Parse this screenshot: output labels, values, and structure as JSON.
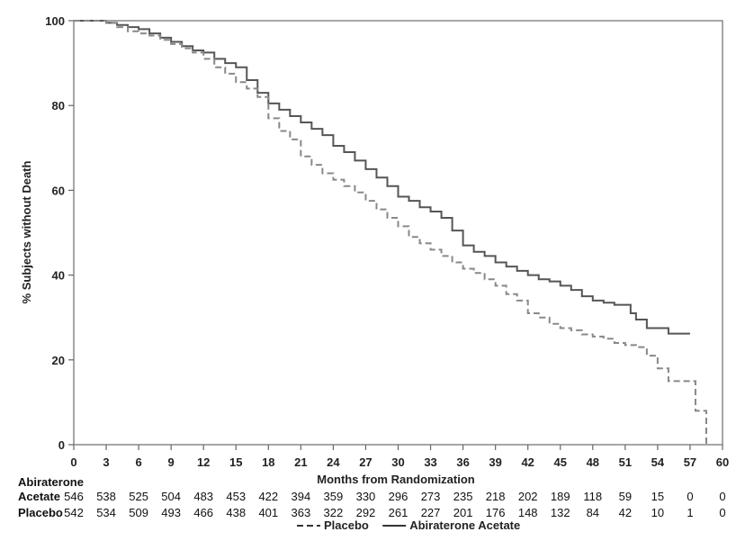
{
  "chart_data": {
    "type": "line",
    "xlabel": "Months from Randomization",
    "ylabel": "% Subjects without Death",
    "xlim": [
      0,
      60
    ],
    "ylim": [
      0,
      100
    ],
    "x_ticks": [
      0,
      3,
      6,
      9,
      12,
      15,
      18,
      21,
      24,
      27,
      30,
      33,
      36,
      39,
      42,
      45,
      48,
      51,
      54,
      57,
      60
    ],
    "y_ticks": [
      0,
      20,
      40,
      60,
      80,
      100
    ],
    "grid": false,
    "series": [
      {
        "name": "Abiraterone Acetate",
        "style": "solid",
        "color": "#555555",
        "x": [
          0,
          2,
          3,
          4,
          5,
          6,
          7,
          8,
          9,
          10,
          11,
          12,
          13,
          14,
          15,
          16,
          17,
          18,
          19,
          20,
          21,
          22,
          23,
          24,
          25,
          26,
          27,
          28,
          29,
          30,
          31,
          32,
          33,
          34,
          35,
          36,
          37,
          38,
          39,
          40,
          41,
          42,
          43,
          44,
          45,
          46,
          47,
          48,
          49,
          50,
          51,
          51.5,
          52,
          53,
          54,
          55,
          56,
          57
        ],
        "y": [
          100,
          100,
          99.5,
          99,
          98.5,
          98,
          97,
          96,
          95,
          94,
          93,
          92.5,
          91,
          90,
          89,
          86,
          83,
          80.5,
          79,
          77.5,
          76,
          74.5,
          73,
          70.5,
          69,
          67,
          65,
          63,
          61,
          58.5,
          57.5,
          56,
          55,
          53.5,
          50.5,
          47,
          45.5,
          44.5,
          43,
          42,
          41,
          40,
          39,
          38.5,
          37.5,
          36.5,
          35,
          34,
          33.5,
          33,
          33,
          31,
          29.5,
          27.5,
          27.5,
          26.2,
          26.2,
          26.2
        ]
      },
      {
        "name": "Placebo",
        "style": "dashed",
        "color": "#888888",
        "x": [
          0,
          2,
          3,
          4,
          5,
          6,
          7,
          8,
          9,
          10,
          11,
          12,
          13,
          14,
          15,
          16,
          17,
          18,
          19,
          20,
          21,
          22,
          23,
          24,
          25,
          26,
          27,
          28,
          29,
          30,
          31,
          32,
          33,
          34,
          35,
          36,
          37,
          38,
          39,
          40,
          41,
          42,
          43,
          44,
          45,
          46,
          47,
          48,
          49,
          50,
          51,
          52,
          53,
          54,
          55,
          56,
          57,
          57.5,
          58,
          58.5
        ],
        "y": [
          100,
          100,
          99.5,
          98.5,
          97.5,
          97,
          96.5,
          95.5,
          94.5,
          93.5,
          92.5,
          91,
          89,
          87.5,
          85.5,
          84,
          82,
          77,
          74,
          72,
          68,
          66,
          64,
          62.5,
          61,
          59.5,
          57.5,
          55.5,
          53.5,
          51.5,
          49,
          47.5,
          46,
          44.5,
          43,
          41.5,
          40.5,
          39,
          37.5,
          35.5,
          34,
          31,
          30,
          28.5,
          27.5,
          27,
          26,
          25.5,
          25,
          24,
          23.5,
          23,
          21,
          18,
          15,
          15,
          15,
          8,
          8,
          0
        ]
      }
    ],
    "risk_table": {
      "rows": [
        {
          "label_line1": "Abiraterone",
          "label_line2": "Acetate",
          "values": [
            "546",
            "538",
            "525",
            "504",
            "483",
            "453",
            "422",
            "394",
            "359",
            "330",
            "296",
            "273",
            "235",
            "218",
            "202",
            "189",
            "118",
            "59",
            "15",
            "0",
            "0"
          ]
        },
        {
          "label_line1": "",
          "label_line2": "Placebo",
          "values": [
            "542",
            "534",
            "509",
            "493",
            "466",
            "438",
            "401",
            "363",
            "322",
            "292",
            "261",
            "227",
            "201",
            "176",
            "148",
            "132",
            "84",
            "42",
            "10",
            "1",
            "0"
          ]
        }
      ]
    },
    "legend": {
      "position": "bottom-center",
      "items": [
        {
          "label": "Placebo",
          "style": "dashed"
        },
        {
          "label": "Abiraterone Acetate",
          "style": "solid"
        }
      ]
    }
  }
}
